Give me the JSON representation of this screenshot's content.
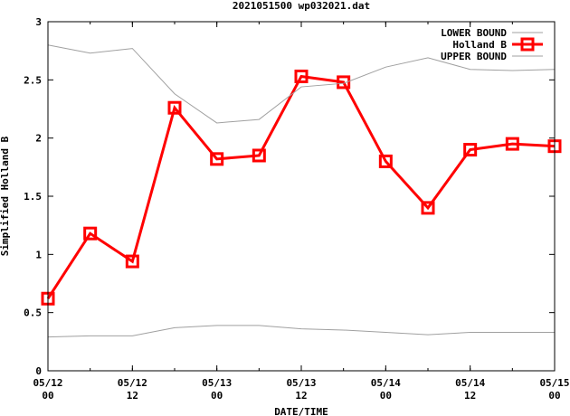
{
  "chart_data": {
    "type": "line",
    "title": "2021051500 wp032021.dat",
    "xlabel": "DATE/TIME",
    "ylabel": "Simplified Holland B",
    "xlim_hours": [
      0,
      72
    ],
    "ylim": [
      0,
      3
    ],
    "x_hours": [
      0,
      6,
      12,
      18,
      24,
      30,
      36,
      42,
      48,
      54,
      60,
      66,
      72
    ],
    "x_ticks": [
      {
        "hour": 0,
        "line1": "05/12",
        "line2": "00"
      },
      {
        "hour": 12,
        "line1": "05/12",
        "line2": "12"
      },
      {
        "hour": 24,
        "line1": "05/13",
        "line2": "00"
      },
      {
        "hour": 36,
        "line1": "05/13",
        "line2": "12"
      },
      {
        "hour": 48,
        "line1": "05/14",
        "line2": "00"
      },
      {
        "hour": 60,
        "line1": "05/14",
        "line2": "12"
      },
      {
        "hour": 72,
        "line1": "05/15",
        "line2": "00"
      }
    ],
    "y_ticks": [
      {
        "value": 0,
        "label": "0"
      },
      {
        "value": 0.5,
        "label": "0.5"
      },
      {
        "value": 1,
        "label": "1"
      },
      {
        "value": 1.5,
        "label": "1.5"
      },
      {
        "value": 2,
        "label": "2"
      },
      {
        "value": 2.5,
        "label": "2.5"
      },
      {
        "value": 3,
        "label": "3"
      }
    ],
    "legend_position": "top-right",
    "series": [
      {
        "name": "LOWER BOUND",
        "color": "#a0a0a0",
        "marker": "none",
        "values": [
          0.29,
          0.3,
          0.3,
          0.37,
          0.39,
          0.39,
          0.36,
          0.35,
          0.33,
          0.31,
          0.33,
          0.33,
          0.33
        ]
      },
      {
        "name": "Holland B",
        "color": "#ff0000",
        "marker": "square",
        "values": [
          0.62,
          1.18,
          0.94,
          2.26,
          1.82,
          1.85,
          2.53,
          2.48,
          1.8,
          1.4,
          1.9,
          1.95,
          1.93
        ]
      },
      {
        "name": "UPPER BOUND",
        "color": "#a0a0a0",
        "marker": "none",
        "values": [
          2.8,
          2.73,
          2.77,
          2.38,
          2.13,
          2.16,
          2.44,
          2.47,
          2.61,
          2.69,
          2.59,
          2.58,
          2.59
        ]
      }
    ]
  }
}
